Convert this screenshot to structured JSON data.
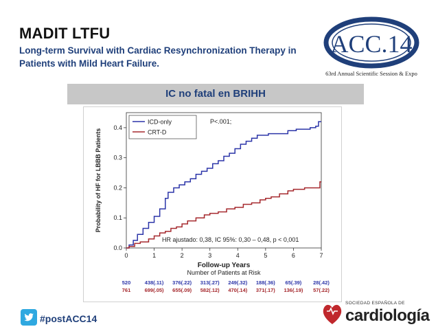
{
  "header": {
    "title": "MADIT LTFU",
    "subtitle": "Long-term Survival with Cardiac Resynchronization Therapy in Patients with Mild Heart Failure."
  },
  "logo_acc": {
    "text": "ACC.14",
    "tagline": "63rd Annual Scientific Session & Expo",
    "color": "#1f3f7a"
  },
  "banner": {
    "text": "IC no fatal en BRIHH"
  },
  "chart_data": {
    "type": "line",
    "title": "",
    "xlabel": "Follow-up Years",
    "ylabel": "Probability of HF for LBBB Patients",
    "xlim": [
      0,
      7
    ],
    "ylim": [
      0,
      0.45
    ],
    "x_ticks": [
      "0",
      "1",
      "2",
      "3",
      "4",
      "5",
      "6",
      "7"
    ],
    "y_ticks": [
      "0.0",
      "0.1",
      "0.2",
      "0.3",
      "0.4"
    ],
    "legend": {
      "placement": "top-left",
      "entries": [
        "ICD-only",
        "CRT-D"
      ]
    },
    "p_value_label": "P<.001;",
    "annotation": "HR ajustado: 0,38, IC 95%: 0,30 – 0,48, p < 0,001",
    "series": [
      {
        "name": "ICD-only",
        "color": "#2b34a8",
        "x": [
          0,
          0.1,
          0.25,
          0.4,
          0.6,
          0.8,
          1.0,
          1.2,
          1.4,
          1.5,
          1.7,
          1.9,
          2.1,
          2.3,
          2.5,
          2.7,
          2.9,
          3.1,
          3.3,
          3.5,
          3.7,
          3.9,
          4.1,
          4.3,
          4.5,
          4.7,
          4.9,
          5.1,
          5.3,
          5.5,
          5.8,
          6.1,
          6.4,
          6.6,
          6.8,
          6.9,
          7.0
        ],
        "y": [
          0,
          0.01,
          0.025,
          0.045,
          0.065,
          0.085,
          0.105,
          0.13,
          0.165,
          0.185,
          0.2,
          0.21,
          0.22,
          0.23,
          0.245,
          0.255,
          0.265,
          0.28,
          0.29,
          0.305,
          0.315,
          0.33,
          0.345,
          0.355,
          0.365,
          0.375,
          0.375,
          0.38,
          0.38,
          0.38,
          0.39,
          0.395,
          0.395,
          0.4,
          0.405,
          0.42,
          0.42
        ]
      },
      {
        "name": "CRT-D",
        "color": "#a5282d",
        "x": [
          0,
          0.1,
          0.3,
          0.5,
          0.8,
          1.0,
          1.2,
          1.4,
          1.6,
          1.8,
          2.0,
          2.2,
          2.5,
          2.8,
          3.0,
          3.3,
          3.6,
          3.9,
          4.2,
          4.5,
          4.8,
          5.0,
          5.2,
          5.5,
          5.8,
          6.0,
          6.4,
          6.7,
          6.85,
          6.95,
          7.0
        ],
        "y": [
          0,
          0.005,
          0.015,
          0.02,
          0.03,
          0.04,
          0.05,
          0.055,
          0.065,
          0.07,
          0.08,
          0.09,
          0.1,
          0.11,
          0.115,
          0.12,
          0.13,
          0.135,
          0.145,
          0.15,
          0.16,
          0.165,
          0.17,
          0.18,
          0.19,
          0.195,
          0.2,
          0.2,
          0.2,
          0.22,
          0.22
        ]
      }
    ],
    "risk_table": {
      "title": "Number of Patients at Risk",
      "rows": [
        {
          "name": "ICD-only",
          "color": "#2b34a8",
          "values": [
            "520",
            "438(.11)",
            "376(.22)",
            "313(.27)",
            "249(.32)",
            "188(.36)",
            "65(.39)",
            "28(.42)"
          ]
        },
        {
          "name": "CRT-D",
          "color": "#a5282d",
          "values": [
            "761",
            "699(.05)",
            "655(.09)",
            "582(.12)",
            "470(.14)",
            "371(.17)",
            "136(.19)",
            "57(.22)"
          ]
        }
      ]
    }
  },
  "footer": {
    "hashtag": "#postACC14",
    "sec_top": "SOCIEDAD ESPAÑOLA DE",
    "sec_name": "cardiología",
    "sec_color": "#c0282d",
    "twitter_color": "#2fa8e0"
  }
}
